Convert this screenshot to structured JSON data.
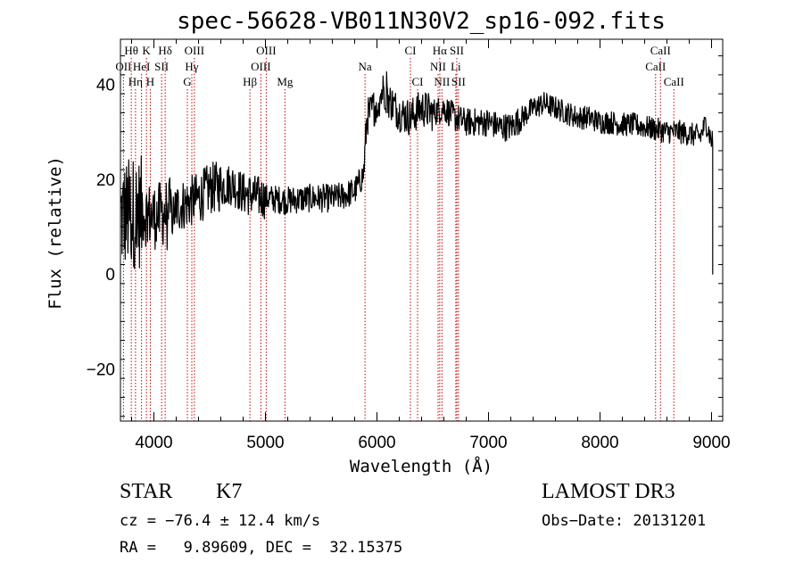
{
  "chart_data": {
    "type": "line",
    "title": "spec-56628-VB011N30V2_sp16-092.fits",
    "xlabel": "Wavelength (Å)",
    "ylabel": "Flux (relative)",
    "xlim": [
      3700,
      9100
    ],
    "ylim": [
      -31,
      49.5
    ],
    "xticks": [
      4000,
      5000,
      6000,
      7000,
      8000,
      9000
    ],
    "xtick_labels": [
      "4000",
      "5000",
      "6000",
      "7000",
      "8000",
      "9000"
    ],
    "yticks": [
      -20,
      0,
      20,
      40
    ],
    "ytick_labels": [
      "−20",
      "0",
      "20",
      "40"
    ],
    "series": [
      {
        "name": "spectrum",
        "color": "#000000",
        "anchors": [
          [
            3700,
            12
          ],
          [
            3800,
            13
          ],
          [
            3900,
            13
          ],
          [
            4000,
            12
          ],
          [
            4100,
            13
          ],
          [
            4200,
            14
          ],
          [
            4300,
            15
          ],
          [
            4400,
            16
          ],
          [
            4500,
            18
          ],
          [
            4600,
            18.5
          ],
          [
            4700,
            19
          ],
          [
            4800,
            17
          ],
          [
            4900,
            16.5
          ],
          [
            5000,
            16
          ],
          [
            5200,
            15.5
          ],
          [
            5400,
            16
          ],
          [
            5600,
            16
          ],
          [
            5700,
            16.5
          ],
          [
            5800,
            17.5
          ],
          [
            5880,
            21
          ],
          [
            5910,
            33
          ],
          [
            6000,
            36
          ],
          [
            6060,
            39
          ],
          [
            6100,
            37
          ],
          [
            6200,
            34
          ],
          [
            6300,
            33
          ],
          [
            6400,
            35
          ],
          [
            6500,
            34
          ],
          [
            6600,
            35
          ],
          [
            6700,
            33
          ],
          [
            6800,
            32
          ],
          [
            6900,
            32
          ],
          [
            7000,
            32
          ],
          [
            7100,
            31
          ],
          [
            7200,
            31
          ],
          [
            7300,
            33
          ],
          [
            7400,
            35
          ],
          [
            7500,
            36
          ],
          [
            7600,
            35
          ],
          [
            7700,
            34
          ],
          [
            7800,
            33
          ],
          [
            7900,
            33
          ],
          [
            8000,
            32
          ],
          [
            8100,
            32
          ],
          [
            8200,
            31.5
          ],
          [
            8300,
            31.5
          ],
          [
            8400,
            31
          ],
          [
            8500,
            30.5
          ],
          [
            8600,
            30
          ],
          [
            8700,
            30
          ],
          [
            8800,
            29.5
          ],
          [
            8900,
            29
          ],
          [
            8950,
            32
          ],
          [
            9000,
            28
          ]
        ],
        "noise_segments": [
          [
            3700,
            3900,
            12
          ],
          [
            3900,
            4150,
            7
          ],
          [
            4150,
            4600,
            5.5
          ],
          [
            4600,
            5000,
            4.5
          ],
          [
            5000,
            5880,
            3
          ],
          [
            5880,
            6500,
            4
          ],
          [
            6500,
            7300,
            3
          ],
          [
            7300,
            9010,
            2.5
          ]
        ]
      }
    ],
    "spectral_lines": [
      {
        "label": "Hθ",
        "wavelength": 3797,
        "row": 1
      },
      {
        "label": "K",
        "wavelength": 3933,
        "row": 1
      },
      {
        "label": "Hδ",
        "wavelength": 4101,
        "row": 1
      },
      {
        "label": "OIII",
        "wavelength": 4363,
        "row": 1
      },
      {
        "label": "OIII",
        "wavelength": 5007,
        "row": 1
      },
      {
        "label": "CI",
        "wavelength": 6300,
        "row": 1
      },
      {
        "label": "Hα",
        "wavelength": 6563,
        "row": 1
      },
      {
        "label": "SII",
        "wavelength": 6716,
        "row": 1
      },
      {
        "label": "CaII",
        "wavelength": 8542,
        "row": 1
      },
      {
        "label": "OII",
        "wavelength": 3727,
        "row": 2
      },
      {
        "label": "HeI",
        "wavelength": 3889,
        "row": 2
      },
      {
        "label": "SII",
        "wavelength": 4069,
        "row": 2
      },
      {
        "label": "Hγ",
        "wavelength": 4340,
        "row": 2
      },
      {
        "label": "OIII",
        "wavelength": 4959,
        "row": 2
      },
      {
        "label": "Na",
        "wavelength": 5893,
        "row": 2
      },
      {
        "label": "NII",
        "wavelength": 6548,
        "row": 2
      },
      {
        "label": "Li",
        "wavelength": 6707,
        "row": 2
      },
      {
        "label": "CaII",
        "wavelength": 8498,
        "row": 2
      },
      {
        "label": "Hη",
        "wavelength": 3835,
        "row": 3
      },
      {
        "label": "H",
        "wavelength": 3968,
        "row": 3
      },
      {
        "label": "G",
        "wavelength": 4300,
        "row": 3
      },
      {
        "label": "Hβ",
        "wavelength": 4861,
        "row": 3
      },
      {
        "label": "Mg",
        "wavelength": 5175,
        "row": 3
      },
      {
        "label": "CI",
        "wavelength": 6364,
        "row": 3
      },
      {
        "label": "NII",
        "wavelength": 6583,
        "row": 3
      },
      {
        "label": "SII",
        "wavelength": 6731,
        "row": 3
      },
      {
        "label": "CaII",
        "wavelength": 8662,
        "row": 3
      }
    ],
    "line_color": "#cc0000"
  },
  "info": {
    "class": "STAR",
    "subclass": "K7",
    "survey": "LAMOST DR3",
    "cz": "cz = −76.4 ± 12.4 km/s",
    "obs_date": "Obs−Date: 20131201",
    "coords": "RA =   9.89609, DEC =  32.15375"
  }
}
